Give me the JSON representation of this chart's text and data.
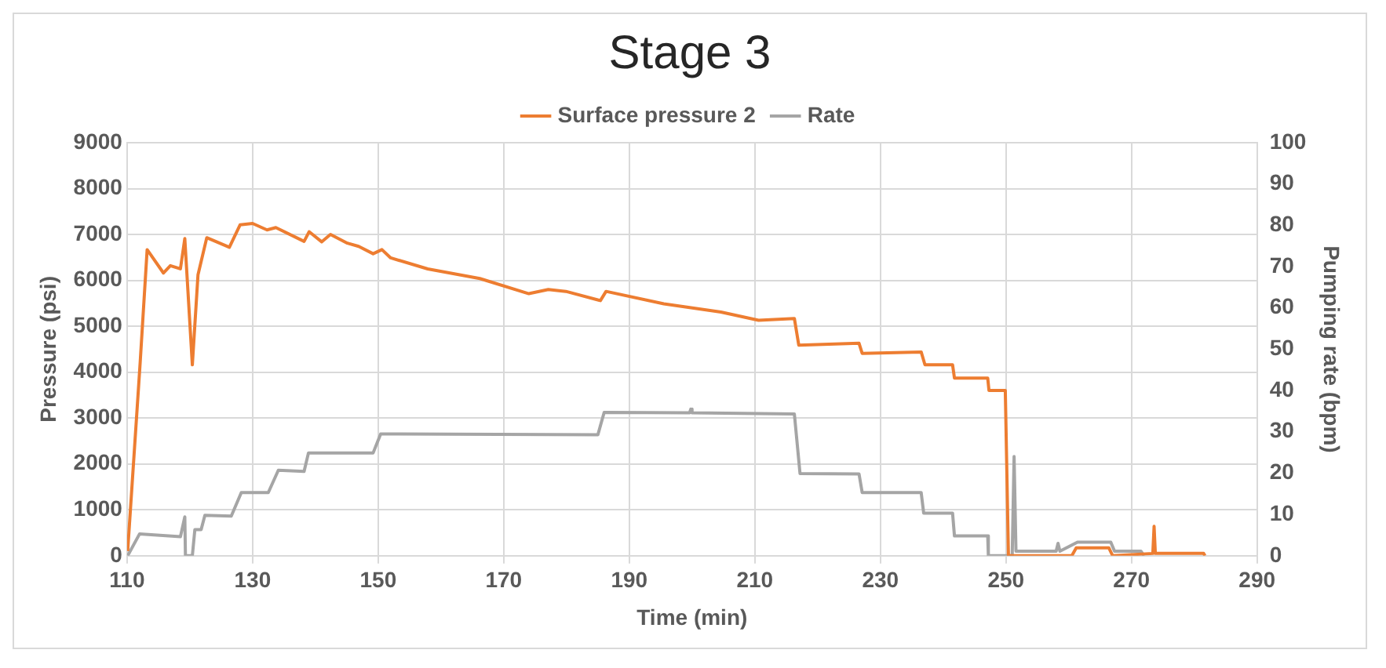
{
  "chart_data": {
    "type": "line",
    "title": "Stage 3",
    "xlabel": "Time (min)",
    "ylabel": "Pressure (psi)",
    "y2label": "Pumping rate (bpm)",
    "xlim": [
      110,
      290
    ],
    "xticks": [
      110,
      130,
      150,
      170,
      190,
      210,
      230,
      250,
      270,
      290
    ],
    "ylim": [
      0,
      9000
    ],
    "yticks": [
      0,
      1000,
      2000,
      3000,
      4000,
      5000,
      6000,
      7000,
      8000,
      9000
    ],
    "y2lim": [
      0,
      100
    ],
    "y2ticks": [
      0,
      10,
      20,
      30,
      40,
      50,
      60,
      70,
      80,
      90,
      100
    ],
    "grid": true,
    "legend": "top",
    "marker": "none",
    "line_style": "solid",
    "series": [
      {
        "name": "Surface pressure 2",
        "color": "#ed7d31",
        "x": [
          110.1,
          112.1,
          113.2,
          115.8,
          116.9,
          118.5,
          119.2,
          120.4,
          121.3,
          122.7,
          126.3,
          128,
          130,
          132.3,
          133.7,
          138.2,
          139,
          141,
          142.4,
          145.1,
          146.9,
          149.2,
          150.6,
          152,
          157.9,
          166.2,
          174,
          177.1,
          179.9,
          185.4,
          186.3,
          195.5,
          204.6,
          210.6,
          216.3,
          217,
          226.6,
          227.1,
          236.5,
          237.1,
          241.5,
          241.8,
          247.1,
          247.3,
          249.9,
          250.4,
          260.5,
          261.2,
          266.4,
          267,
          273.4,
          273.6,
          273.8,
          281.5,
          281.7
        ],
        "values": [
          100,
          4230,
          6670,
          6160,
          6320,
          6250,
          6910,
          4160,
          6120,
          6930,
          6720,
          7210,
          7240,
          7100,
          7150,
          6850,
          7060,
          6840,
          7000,
          6810,
          6740,
          6580,
          6670,
          6490,
          6250,
          6040,
          5710,
          5800,
          5760,
          5560,
          5760,
          5490,
          5310,
          5130,
          5170,
          4590,
          4630,
          4410,
          4440,
          4160,
          4160,
          3870,
          3870,
          3600,
          3600,
          0,
          0,
          170,
          170,
          0,
          50,
          640,
          50,
          50,
          0
        ]
      },
      {
        "name": "Rate",
        "color": "#a5a5a5",
        "axis": "y2",
        "x": [
          110.1,
          112,
          118.5,
          119.2,
          119.3,
          120.4,
          120.8,
          121.8,
          122.4,
          126.6,
          128.2,
          132.5,
          134.1,
          138.2,
          138.9,
          149.2,
          150.4,
          185,
          186,
          199.6,
          199.8,
          200,
          216.3,
          217.2,
          226.6,
          227.1,
          236.5,
          236.9,
          241.5,
          241.8,
          247.1,
          247.2,
          251,
          251.3,
          251.6,
          258,
          258.3,
          258.6,
          261.4,
          266.7,
          267.3,
          271.5,
          272
        ],
        "values": [
          0,
          5.3,
          4.6,
          9.4,
          0,
          0,
          6.3,
          6.3,
          9.8,
          9.6,
          15.3,
          15.3,
          20.7,
          20.4,
          24.9,
          24.9,
          29.5,
          29.3,
          34.7,
          34.6,
          35.5,
          34.6,
          34.3,
          19.9,
          19.8,
          15.3,
          15.3,
          10.3,
          10.3,
          4.8,
          4.8,
          0,
          0,
          24,
          1.1,
          1.1,
          3,
          1.1,
          3.3,
          3.3,
          1.1,
          1.1,
          0
        ]
      }
    ]
  }
}
